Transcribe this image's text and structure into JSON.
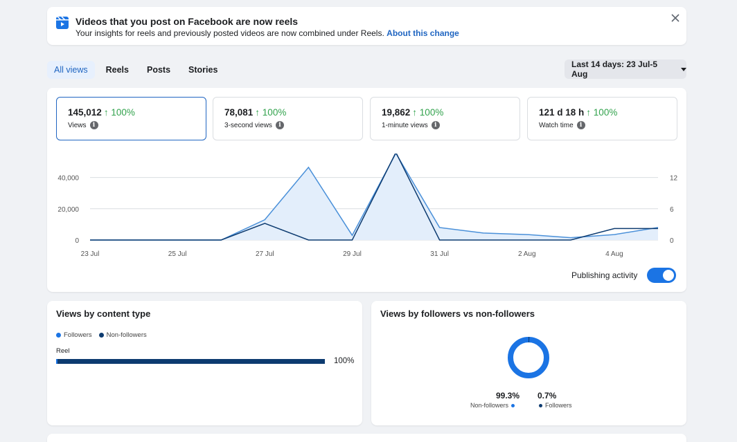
{
  "banner": {
    "title": "Videos that you post on Facebook are now reels",
    "subtitle": "Your insights for reels and previously posted videos are now combined under Reels.",
    "link": "About this change",
    "icon": "reels-icon",
    "close_icon": "close-icon"
  },
  "tabs": [
    {
      "label": "All views",
      "active": true
    },
    {
      "label": "Reels",
      "active": false
    },
    {
      "label": "Posts",
      "active": false
    },
    {
      "label": "Stories",
      "active": false
    }
  ],
  "date_range": {
    "label": "Last 14 days: 23 Jul-5 Aug"
  },
  "metrics": [
    {
      "value": "145,012",
      "change": "↑ 100%",
      "label": "Views",
      "selected": true
    },
    {
      "value": "78,081",
      "change": "↑ 100%",
      "label": "3-second views",
      "selected": false
    },
    {
      "value": "19,862",
      "change": "↑ 100%",
      "label": "1-minute views",
      "selected": false
    },
    {
      "value": "121 d 18 h",
      "change": "↑ 100%",
      "label": "Watch time",
      "selected": false
    }
  ],
  "chart_data": {
    "type": "line",
    "x": [
      "23 Jul",
      "24 Jul",
      "25 Jul",
      "26 Jul",
      "27 Jul",
      "28 Jul",
      "29 Jul",
      "30 Jul",
      "31 Jul",
      "1 Aug",
      "2 Aug",
      "3 Aug",
      "4 Aug",
      "5 Aug"
    ],
    "x_tick_labels": [
      "23 Jul",
      "25 Jul",
      "27 Jul",
      "29 Jul",
      "31 Jul",
      "2 Aug",
      "4 Aug"
    ],
    "y_left_ticks": [
      "0",
      "20,000",
      "40,000"
    ],
    "y_right_ticks": [
      "0",
      "6",
      "12"
    ],
    "ylim_left": [
      0,
      50000
    ],
    "ylim_right": [
      0,
      15
    ],
    "series": [
      {
        "axis": "left",
        "color": "#4a90d9",
        "fill": "#e3eefb",
        "values": [
          0,
          0,
          0,
          0,
          13000,
          46500,
          3000,
          55500,
          8000,
          4500,
          3500,
          1500,
          3500,
          8000
        ]
      },
      {
        "axis": "right",
        "color": "#0d3b70",
        "values": [
          0,
          0,
          0,
          0,
          3.2,
          0,
          0,
          16.8,
          0,
          0,
          0,
          0,
          2.2,
          2.2
        ]
      }
    ],
    "grid": true
  },
  "publishing_activity": {
    "label": "Publishing activity",
    "on": true
  },
  "content_type": {
    "title": "Views by content type",
    "legend": [
      {
        "label": "Followers",
        "color": "#1b74e4"
      },
      {
        "label": "Non-followers",
        "color": "#0d3b70"
      }
    ],
    "rows": [
      {
        "label": "Reel",
        "percent": "100%",
        "value": 100
      }
    ]
  },
  "followers_split": {
    "title": "Views by followers vs non-followers",
    "non_followers": {
      "percent": "99.3%",
      "label": "Non-followers",
      "color": "#1b74e4",
      "value": 99.3
    },
    "followers": {
      "percent": "0.7%",
      "label": "Followers",
      "color": "#0d3b70",
      "value": 0.7
    }
  }
}
